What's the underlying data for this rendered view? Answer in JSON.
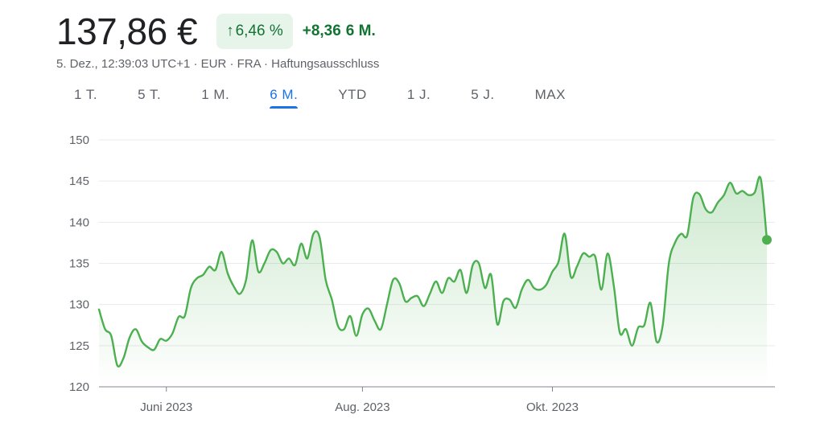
{
  "header": {
    "price": "137,86 €",
    "pct_change": "6,46 %",
    "abs_change": "+8,36",
    "abs_period": "6 M."
  },
  "meta": "5. Dez., 12:39:03 UTC+1 · EUR · FRA · Haftungsausschluss",
  "tabs": [
    {
      "label": "1 T.",
      "active": false
    },
    {
      "label": "5 T.",
      "active": false
    },
    {
      "label": "1 M.",
      "active": false
    },
    {
      "label": "6 M.",
      "active": true
    },
    {
      "label": "YTD",
      "active": false
    },
    {
      "label": "1 J.",
      "active": false
    },
    {
      "label": "5 J.",
      "active": false
    },
    {
      "label": "MAX",
      "active": false
    }
  ],
  "colors": {
    "line": "#4caf50",
    "positive_text": "#137333",
    "positive_bg": "#e6f4ea",
    "active_tab": "#1a73e8"
  },
  "chart_data": {
    "type": "area",
    "ylim": [
      120,
      150
    ],
    "yticks": [
      120,
      125,
      130,
      135,
      140,
      145,
      150
    ],
    "grid": true,
    "xticks": [
      {
        "label": "Juni 2023",
        "index": 11
      },
      {
        "label": "Aug. 2023",
        "index": 43
      },
      {
        "label": "Okt. 2023",
        "index": 74
      }
    ],
    "values": [
      129.4,
      127.0,
      126.2,
      122.6,
      123.5,
      126.0,
      127.0,
      125.5,
      124.8,
      124.5,
      125.8,
      125.6,
      126.5,
      128.5,
      128.6,
      132.0,
      133.2,
      133.6,
      134.6,
      134.2,
      136.4,
      133.8,
      132.2,
      131.3,
      133.0,
      137.8,
      134.0,
      135.0,
      136.6,
      136.4,
      135.0,
      135.6,
      134.8,
      137.4,
      135.6,
      138.6,
      138.2,
      133.0,
      130.6,
      127.4,
      127.0,
      128.6,
      126.2,
      128.8,
      129.5,
      128.0,
      127.0,
      130.0,
      133.0,
      132.6,
      130.4,
      130.8,
      131.0,
      129.8,
      131.3,
      132.8,
      131.4,
      133.2,
      132.8,
      134.2,
      131.4,
      134.8,
      135.0,
      132.0,
      133.6,
      127.6,
      130.4,
      130.6,
      129.6,
      131.8,
      133.0,
      132.0,
      131.8,
      132.4,
      134.0,
      135.2,
      138.6,
      133.4,
      134.6,
      136.2,
      135.8,
      135.8,
      131.8,
      136.2,
      132.4,
      126.6,
      127.0,
      125.0,
      127.2,
      127.5,
      130.2,
      125.5,
      127.5,
      135.0,
      137.5,
      138.6,
      138.4,
      143.0,
      143.4,
      141.6,
      141.2,
      142.4,
      143.3,
      144.8,
      143.5,
      143.8,
      143.3,
      143.6,
      145.3,
      137.86
    ]
  }
}
